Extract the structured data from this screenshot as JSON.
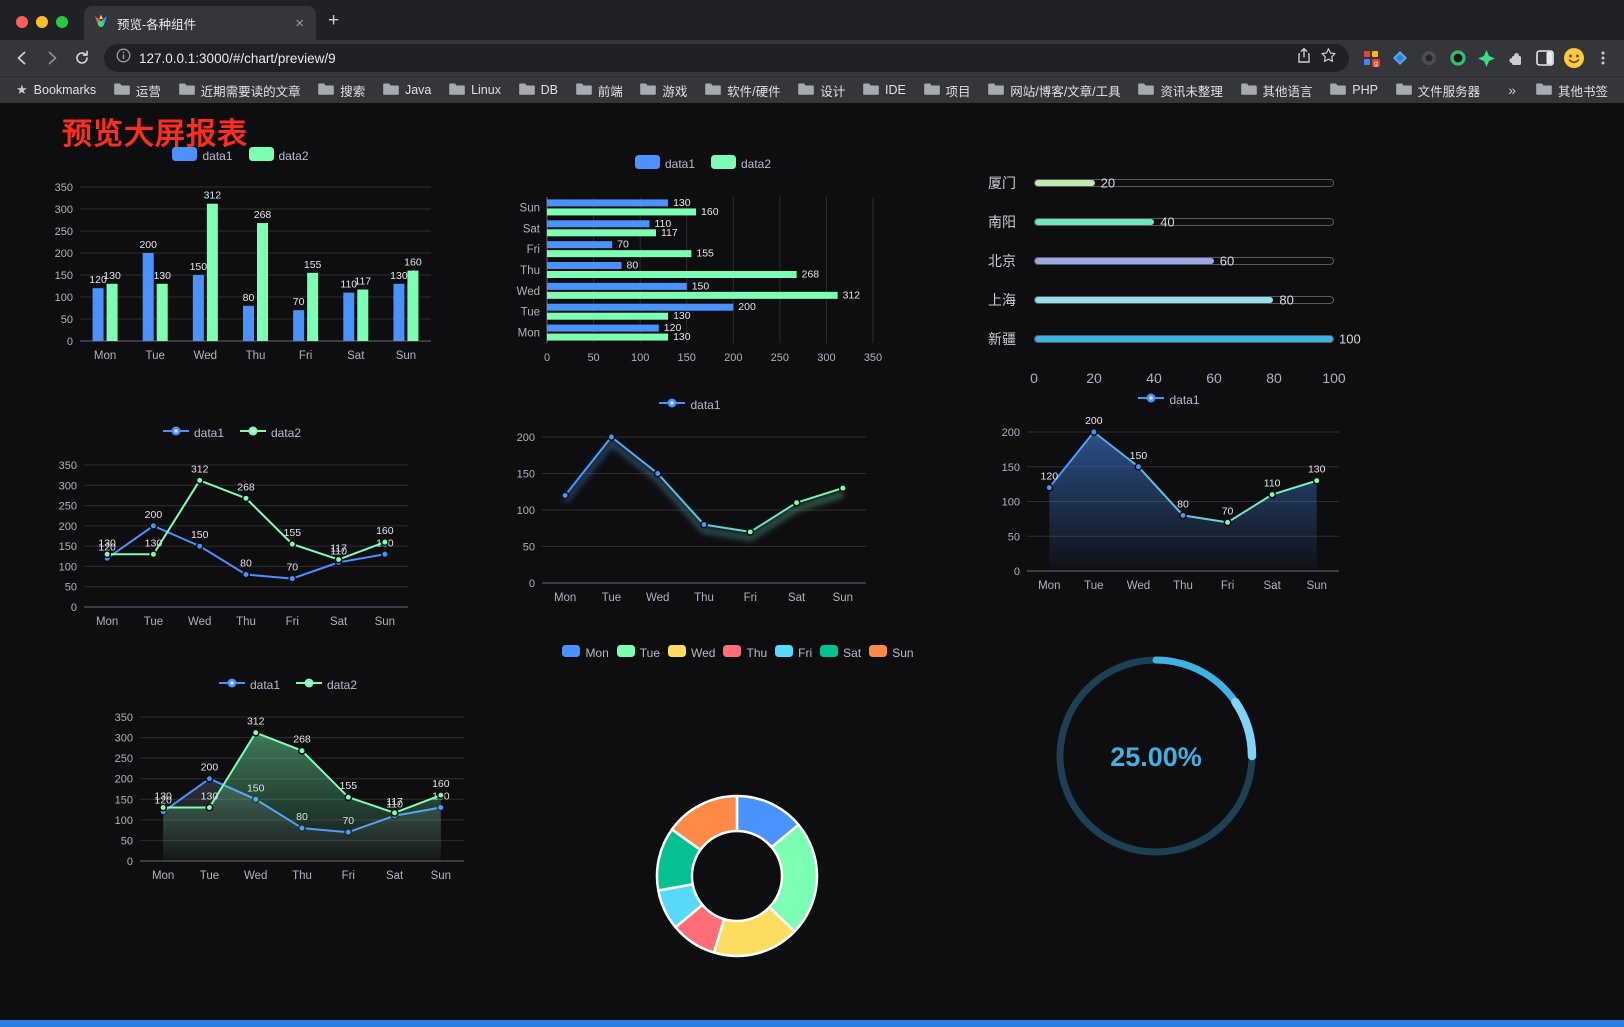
{
  "browser": {
    "tab": {
      "title": "预览-各种组件"
    },
    "url": "127.0.0.1:3000/#/chart/preview/9",
    "bookmarks_label": "Bookmarks",
    "bookmarks": [
      "运营",
      "近期需要读的文章",
      "搜索",
      "Java",
      "Linux",
      "DB",
      "前端",
      "游戏",
      "软件/硬件",
      "设计",
      "IDE",
      "项目",
      "网站/博客/文章/工具",
      "资讯未整理",
      "其他语言",
      "PHP",
      "文件服务器"
    ],
    "bookmarks_overflow": "»",
    "other_bookmarks": "其他书签"
  },
  "page": {
    "title": "预览大屏报表",
    "title_color": "#ff2d1e",
    "background": "#0e0e10",
    "footer_color": "#2b7fe3"
  },
  "chart_data": [
    {
      "type": "bar",
      "legend": [
        "data1",
        "data2"
      ],
      "categories": [
        "Mon",
        "Tue",
        "Wed",
        "Thu",
        "Fri",
        "Sat",
        "Sun"
      ],
      "series": [
        {
          "name": "data1",
          "color": "#4992ff",
          "values": [
            120,
            200,
            150,
            80,
            70,
            110,
            130
          ]
        },
        {
          "name": "data2",
          "color": "#7cffb2",
          "values": [
            130,
            130,
            312,
            268,
            155,
            117,
            160
          ]
        }
      ],
      "ylim": [
        0,
        350
      ],
      "ytick": 50,
      "labels": true
    },
    {
      "type": "bar-horizontal",
      "legend": [
        "data1",
        "data2"
      ],
      "categories": [
        "Mon",
        "Tue",
        "Wed",
        "Thu",
        "Fri",
        "Sat",
        "Sun"
      ],
      "series": [
        {
          "name": "data1",
          "color": "#4992ff",
          "values": [
            120,
            200,
            150,
            80,
            70,
            110,
            130
          ]
        },
        {
          "name": "data2",
          "color": "#7cffb2",
          "values": [
            130,
            130,
            312,
            268,
            155,
            117,
            160
          ]
        }
      ],
      "xlim": [
        0,
        350
      ],
      "xtick": 50,
      "labels": true
    },
    {
      "type": "progress",
      "rows": [
        {
          "label": "厦门",
          "value": 20,
          "color": "#c4ebad"
        },
        {
          "label": "南阳",
          "value": 40,
          "color": "#6be6c1"
        },
        {
          "label": "北京",
          "value": 60,
          "color": "#a0a7e6"
        },
        {
          "label": "上海",
          "value": 80,
          "color": "#96dee8"
        },
        {
          "label": "新疆",
          "value": 100,
          "color": "#3fb1e3"
        }
      ],
      "xticks": [
        0,
        20,
        40,
        60,
        80,
        100
      ],
      "xlim": [
        0,
        100
      ]
    },
    {
      "type": "line",
      "legend": [
        "data1",
        "data2"
      ],
      "categories": [
        "Mon",
        "Tue",
        "Wed",
        "Thu",
        "Fri",
        "Sat",
        "Sun"
      ],
      "series": [
        {
          "name": "data1",
          "color": "#4992ff",
          "values": [
            120,
            200,
            150,
            80,
            70,
            110,
            130
          ]
        },
        {
          "name": "data2",
          "color": "#7cffb2",
          "values": [
            130,
            130,
            312,
            268,
            155,
            117,
            160
          ]
        }
      ],
      "ylim": [
        0,
        350
      ],
      "ytick": 50,
      "labels": true
    },
    {
      "type": "line",
      "legend": [
        "data1"
      ],
      "categories": [
        "Mon",
        "Tue",
        "Wed",
        "Thu",
        "Fri",
        "Sat",
        "Sun"
      ],
      "series": [
        {
          "name": "data1",
          "colors": [
            "#4992ff",
            "#7cffb2"
          ],
          "glow": true,
          "values": [
            120,
            200,
            150,
            80,
            70,
            110,
            130
          ]
        }
      ],
      "ylim": [
        0,
        200
      ],
      "ytick": 50,
      "labels": false
    },
    {
      "type": "line",
      "legend": [
        "data1"
      ],
      "categories": [
        "Mon",
        "Tue",
        "Wed",
        "Thu",
        "Fri",
        "Sat",
        "Sun"
      ],
      "series": [
        {
          "name": "data1",
          "colors": [
            "#4992ff",
            "#7cffb2"
          ],
          "area": "#4992ff",
          "area_opacity": 0.5,
          "values": [
            120,
            200,
            150,
            80,
            70,
            110,
            130
          ]
        }
      ],
      "ylim": [
        0,
        200
      ],
      "ytick": 50,
      "labels": true
    },
    {
      "type": "line",
      "legend": [
        "data1",
        "data2"
      ],
      "categories": [
        "Mon",
        "Tue",
        "Wed",
        "Thu",
        "Fri",
        "Sat",
        "Sun"
      ],
      "series": [
        {
          "name": "data1",
          "color": "#4992ff",
          "area": "#8b97a5",
          "area_opacity": 0.25,
          "values": [
            120,
            200,
            150,
            80,
            70,
            110,
            130
          ]
        },
        {
          "name": "data2",
          "color": "#7cffb2",
          "area": "#7cffb2",
          "area_opacity": 0.45,
          "values": [
            130,
            130,
            312,
            268,
            155,
            117,
            160
          ]
        }
      ],
      "ylim": [
        0,
        350
      ],
      "ytick": 50,
      "labels": true
    },
    {
      "type": "donut",
      "legend": [
        "Mon",
        "Tue",
        "Wed",
        "Thu",
        "Fri",
        "Sat",
        "Sun"
      ],
      "values": [
        120,
        200,
        150,
        80,
        70,
        110,
        130
      ],
      "colors": [
        "#4992ff",
        "#7cffb2",
        "#fddd60",
        "#ff6e76",
        "#58d9f9",
        "#05c091",
        "#ff8a45"
      ]
    },
    {
      "type": "gauge",
      "value": 25,
      "label": "25.00%",
      "color": "#3fb1e3",
      "highlight": "#7fd4f7",
      "track": "#1d4152"
    }
  ]
}
